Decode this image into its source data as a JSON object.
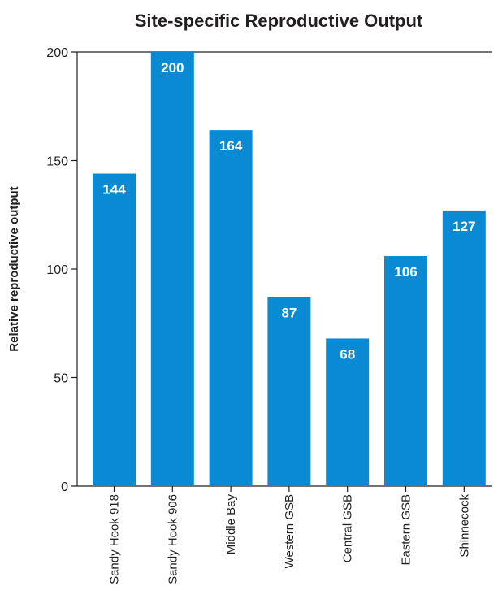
{
  "chart_data": {
    "type": "bar",
    "title": "Site-specific Reproductive Output",
    "xlabel": "",
    "ylabel": "Relative reproductive output",
    "categories": [
      "Sandy Hook 918",
      "Sandy Hook 906",
      "Middle Bay",
      "Western GSB",
      "Central GSB",
      "Eastern GSB",
      "Shinnecock"
    ],
    "values": [
      144,
      200,
      164,
      87,
      68,
      106,
      127
    ],
    "data_labels": [
      "144",
      "200",
      "164",
      "87",
      "68",
      "106",
      "127"
    ],
    "ylim": [
      0,
      200
    ],
    "yticks": [
      0,
      50,
      100,
      150,
      200
    ],
    "grid": false,
    "legend": "none",
    "bar_color": "#0a8ad2",
    "axis_color": "#231f20"
  }
}
